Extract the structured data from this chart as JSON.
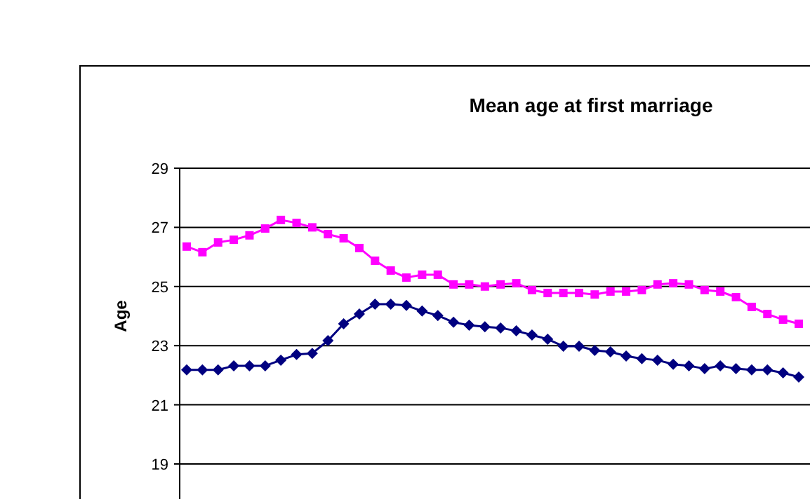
{
  "chart_data": {
    "type": "line",
    "title": "Mean age at first marriage",
    "ylabel": "Age",
    "categories": [
      null,
      null,
      null,
      null,
      null,
      null,
      null,
      null,
      null,
      null,
      null,
      null,
      null,
      null,
      null,
      null,
      null,
      null,
      null,
      null,
      null,
      null,
      null,
      null,
      null,
      null,
      null,
      null,
      null,
      null,
      null,
      null,
      null,
      null,
      null,
      null,
      null,
      null,
      null,
      null
    ],
    "ylim": [
      19,
      29
    ],
    "yticks": [
      19,
      21,
      23,
      25,
      27,
      29
    ],
    "grid": "y",
    "tick_labels": "y",
    "series": [
      {
        "color": "#ff00ff",
        "marker": "square",
        "values": [
          26.35,
          26.16,
          26.49,
          26.58,
          26.73,
          26.96,
          27.25,
          27.15,
          27.0,
          26.77,
          26.63,
          26.3,
          25.87,
          25.54,
          25.3,
          25.4,
          25.4,
          25.07,
          25.07,
          25.0,
          25.07,
          25.11,
          24.88,
          24.78,
          24.78,
          24.78,
          24.73,
          24.83,
          24.83,
          24.88,
          25.07,
          25.11,
          25.07,
          24.88,
          24.83,
          24.64,
          24.31,
          24.07,
          23.88,
          23.74
        ]
      },
      {
        "color": "#000080",
        "marker": "diamond",
        "values": [
          22.18,
          22.18,
          22.18,
          22.32,
          22.32,
          22.32,
          22.51,
          22.7,
          22.74,
          23.17,
          23.74,
          24.07,
          24.4,
          24.4,
          24.36,
          24.17,
          24.02,
          23.79,
          23.69,
          23.64,
          23.6,
          23.5,
          23.36,
          23.22,
          22.98,
          22.98,
          22.84,
          22.79,
          22.65,
          22.56,
          22.51,
          22.37,
          22.32,
          22.22,
          22.32,
          22.22,
          22.18,
          22.18,
          22.08,
          21.94
        ]
      }
    ]
  }
}
